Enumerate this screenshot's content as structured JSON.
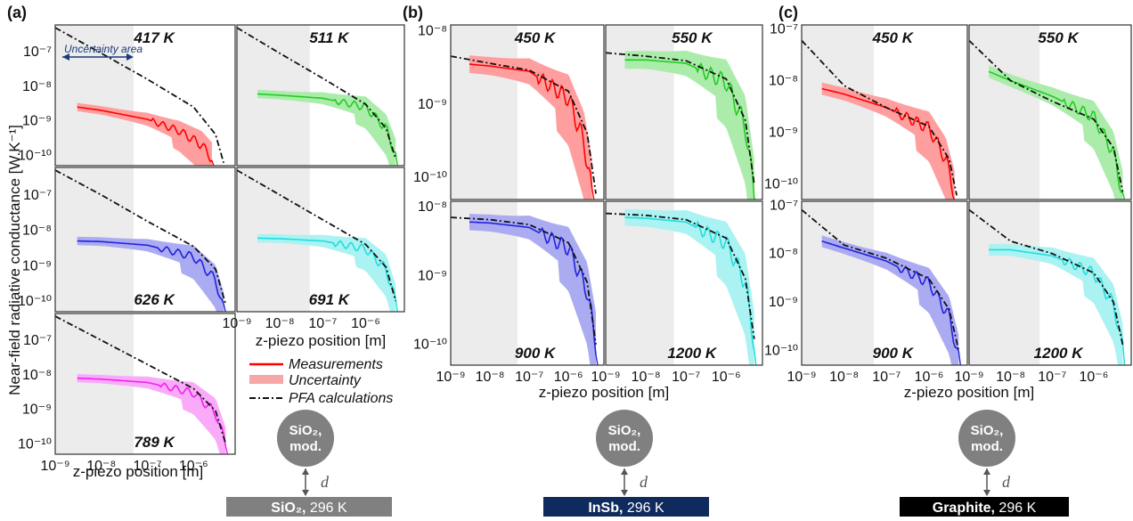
{
  "chart_data": {
    "type": "line",
    "ylabel": "Near-field radiative conductance [W.K⁻¹]",
    "xlabel": "z-piezo position [m]",
    "xscale": "log",
    "yscale": "log",
    "x_tick_labels": [
      "10⁻⁹",
      "10⁻⁸",
      "10⁻⁷",
      "10⁻⁶"
    ],
    "legend": {
      "placement": "between panels (a) and (b)",
      "entries": [
        "Measurements",
        "Uncertainty",
        "PFA calculations"
      ]
    },
    "uncertainty_annotation": "Uncertainty area",
    "groups": [
      {
        "letter": "(a)",
        "substrate": "SiO₂",
        "substrate_label": "SiO₂,",
        "substrate_temp": " 296 K",
        "probe_line1": "SiO₂,",
        "probe_line2": "mod.",
        "gap_label": "d",
        "substrate_color": "#808080",
        "panels": [
          {
            "temperature": "417 K",
            "color": "#ff0000",
            "ylim": [
              5e-11,
              6e-07
            ],
            "yticks": [
              "10⁻⁷",
              "10⁻⁸",
              "10⁻⁹",
              "10⁻¹⁰"
            ],
            "measurement": [
              [
                3e-09,
                2.5e-09
              ],
              [
                1e-08,
                2e-09
              ],
              [
                1e-07,
                1.1e-09
              ],
              [
                5e-07,
                5e-10
              ],
              [
                1.5e-06,
                2e-10
              ],
              [
                2.5e-06,
                8e-11
              ]
            ],
            "pfa": [
              [
                1e-09,
                5e-07
              ],
              [
                1e-08,
                9e-08
              ],
              [
                1e-07,
                1.6e-08
              ],
              [
                1e-06,
                2.5e-09
              ],
              [
                3e-06,
                4e-10
              ],
              [
                4.5e-06,
                6e-11
              ]
            ]
          },
          {
            "temperature": "511 K",
            "color": "#22cc22",
            "ylim": [
              5e-11,
              6e-07
            ],
            "yticks": [],
            "measurement": [
              [
                3e-09,
                6e-09
              ],
              [
                1e-08,
                5.5e-09
              ],
              [
                1e-07,
                4.5e-09
              ],
              [
                1e-06,
                2.5e-09
              ],
              [
                3e-06,
                6e-10
              ],
              [
                5e-06,
                1e-10
              ]
            ],
            "pfa": [
              [
                1e-09,
                5e-07
              ],
              [
                1e-08,
                9e-08
              ],
              [
                1e-07,
                1.7e-08
              ],
              [
                1e-06,
                3e-09
              ],
              [
                3e-06,
                6e-10
              ],
              [
                5e-06,
                8e-11
              ]
            ]
          },
          {
            "temperature": "626 K",
            "color": "#2222dd",
            "ylim": [
              5e-11,
              6e-07
            ],
            "yticks": [
              "10⁻⁷",
              "10⁻⁸",
              "10⁻⁹",
              "10⁻¹⁰"
            ],
            "measurement": [
              [
                3e-09,
                5e-09
              ],
              [
                1e-08,
                4.8e-09
              ],
              [
                1e-07,
                3.8e-09
              ],
              [
                1e-06,
                1.8e-09
              ],
              [
                3e-06,
                4e-10
              ],
              [
                4.5e-06,
                6e-11
              ]
            ],
            "pfa": [
              [
                1e-09,
                5e-07
              ],
              [
                1e-08,
                1e-07
              ],
              [
                1e-07,
                1.8e-08
              ],
              [
                1e-06,
                3.5e-09
              ],
              [
                3e-06,
                8e-10
              ],
              [
                5e-06,
                8e-11
              ]
            ]
          },
          {
            "temperature": "691 K",
            "color": "#22dddd",
            "ylim": [
              5e-11,
              6e-07
            ],
            "yticks": [],
            "measurement": [
              [
                3e-09,
                6e-09
              ],
              [
                1e-08,
                5.8e-09
              ],
              [
                1e-07,
                5e-09
              ],
              [
                1e-06,
                3e-09
              ],
              [
                3e-06,
                8e-10
              ],
              [
                5e-06,
                1e-10
              ]
            ],
            "pfa": [
              [
                1e-09,
                5e-07
              ],
              [
                1e-08,
                1e-07
              ],
              [
                1e-07,
                2e-08
              ],
              [
                1e-06,
                4e-09
              ],
              [
                3e-06,
                9e-10
              ],
              [
                5e-06,
                1e-10
              ]
            ]
          },
          {
            "temperature": "789 K",
            "color": "#ee22ee",
            "ylim": [
              5e-11,
              6e-07
            ],
            "yticks": [
              "10⁻⁷",
              "10⁻⁸",
              "10⁻⁹",
              "10⁻¹⁰"
            ],
            "measurement": [
              [
                3e-09,
                8e-09
              ],
              [
                1e-08,
                7.5e-09
              ],
              [
                1e-07,
                6e-09
              ],
              [
                1e-06,
                3e-09
              ],
              [
                3e-06,
                8e-10
              ],
              [
                5e-06,
                1e-10
              ]
            ],
            "pfa": [
              [
                1e-09,
                5e-07
              ],
              [
                1e-08,
                1e-07
              ],
              [
                1e-07,
                2e-08
              ],
              [
                1e-06,
                4e-09
              ],
              [
                3e-06,
                9e-10
              ],
              [
                5e-06,
                1e-10
              ]
            ]
          }
        ]
      },
      {
        "letter": "(b)",
        "substrate": "InSb",
        "substrate_label": "InSb,",
        "substrate_temp": " 296 K",
        "probe_line1": "SiO₂,",
        "probe_line2": "mod.",
        "gap_label": "d",
        "substrate_color": "#0f2a5c",
        "panels": [
          {
            "temperature": "450 K",
            "color": "#ff0000",
            "ylim": [
              5e-11,
              1.2e-08
            ],
            "yticks": [
              "10⁻⁸",
              "10⁻⁹",
              "10⁻¹⁰"
            ],
            "measurement": [
              [
                3e-09,
                3.5e-09
              ],
              [
                1e-08,
                3.3e-09
              ],
              [
                1e-07,
                2.8e-09
              ],
              [
                1e-06,
                1.2e-09
              ],
              [
                2.5e-06,
                3e-10
              ],
              [
                4e-06,
                6e-11
              ]
            ],
            "pfa": [
              [
                1e-09,
                4.5e-09
              ],
              [
                1e-08,
                3.6e-09
              ],
              [
                1e-07,
                2.9e-09
              ],
              [
                1e-06,
                1.5e-09
              ],
              [
                3e-06,
                4e-10
              ],
              [
                5e-06,
                6e-11
              ]
            ]
          },
          {
            "temperature": "550 K",
            "color": "#22cc22",
            "ylim": [
              5e-11,
              1.2e-08
            ],
            "yticks": [],
            "measurement": [
              [
                3e-09,
                4e-09
              ],
              [
                1e-08,
                4e-09
              ],
              [
                1e-07,
                3.6e-09
              ],
              [
                1e-06,
                2e-09
              ],
              [
                3e-06,
                5e-10
              ],
              [
                5e-06,
                6e-11
              ]
            ],
            "pfa": [
              [
                1e-09,
                5e-09
              ],
              [
                1e-08,
                4.5e-09
              ],
              [
                1e-07,
                3.9e-09
              ],
              [
                1e-06,
                2.2e-09
              ],
              [
                3e-06,
                6e-10
              ],
              [
                5e-06,
                8e-11
              ]
            ]
          },
          {
            "temperature": "900 K",
            "color": "#2222dd",
            "ylim": [
              5e-11,
              1.2e-08
            ],
            "yticks": [
              "10⁻⁸",
              "10⁻⁹",
              "10⁻¹⁰"
            ],
            "measurement": [
              [
                3e-09,
                6e-09
              ],
              [
                1e-08,
                5.8e-09
              ],
              [
                1e-07,
                5e-09
              ],
              [
                1e-06,
                2.5e-09
              ],
              [
                3e-06,
                6e-10
              ],
              [
                5e-06,
                1e-10
              ]
            ],
            "pfa": [
              [
                1e-09,
                7e-09
              ],
              [
                1e-08,
                6.5e-09
              ],
              [
                1e-07,
                5.5e-09
              ],
              [
                1e-06,
                3e-09
              ],
              [
                3e-06,
                8e-10
              ],
              [
                5e-06,
                1e-10
              ]
            ]
          },
          {
            "temperature": "1200 K",
            "color": "#22dddd",
            "ylim": [
              5e-11,
              1.2e-08
            ],
            "yticks": [],
            "measurement": [
              [
                3e-09,
                7e-09
              ],
              [
                1e-08,
                6.8e-09
              ],
              [
                1e-07,
                6e-09
              ],
              [
                1e-06,
                3e-09
              ],
              [
                3e-06,
                8e-10
              ],
              [
                5e-06,
                1e-10
              ]
            ],
            "pfa": [
              [
                1e-09,
                8e-09
              ],
              [
                1e-08,
                7.5e-09
              ],
              [
                1e-07,
                6.5e-09
              ],
              [
                1e-06,
                3.5e-09
              ],
              [
                3e-06,
                9e-10
              ],
              [
                5e-06,
                1.2e-10
              ]
            ]
          }
        ]
      },
      {
        "letter": "(c)",
        "substrate": "Graphite",
        "substrate_label": "Graphite,",
        "substrate_temp": " 296 K",
        "probe_line1": "SiO₂,",
        "probe_line2": "mod.",
        "gap_label": "d",
        "substrate_color": "#000000",
        "panels": [
          {
            "temperature": "450 K",
            "color": "#ff0000",
            "ylim": [
              5e-11,
              1.2e-07
            ],
            "yticks": [
              "10⁻⁷",
              "10⁻⁸",
              "10⁻⁹",
              "10⁻¹⁰"
            ],
            "measurement": [
              [
                3e-09,
                7e-09
              ],
              [
                1e-08,
                5.5e-09
              ],
              [
                1e-07,
                3e-09
              ],
              [
                1e-06,
                1.2e-09
              ],
              [
                2.5e-06,
                3e-10
              ],
              [
                4e-06,
                6e-11
              ]
            ],
            "pfa": [
              [
                1e-09,
                6e-08
              ],
              [
                1e-08,
                8e-09
              ],
              [
                1e-07,
                3e-09
              ],
              [
                1e-06,
                1.3e-09
              ],
              [
                3e-06,
                3e-10
              ],
              [
                4.5e-06,
                6e-11
              ]
            ]
          },
          {
            "temperature": "550 K",
            "color": "#22cc22",
            "ylim": [
              5e-11,
              1.2e-07
            ],
            "yticks": [],
            "measurement": [
              [
                3e-09,
                1.5e-08
              ],
              [
                1e-08,
                1e-08
              ],
              [
                1e-07,
                5e-09
              ],
              [
                1e-06,
                2e-09
              ],
              [
                3e-06,
                4e-10
              ],
              [
                5e-06,
                6e-11
              ]
            ],
            "pfa": [
              [
                1e-09,
                6e-08
              ],
              [
                1e-08,
                1e-08
              ],
              [
                1e-07,
                4e-09
              ],
              [
                1e-06,
                1.8e-09
              ],
              [
                3e-06,
                5e-10
              ],
              [
                5e-06,
                7e-11
              ]
            ]
          },
          {
            "temperature": "900 K",
            "color": "#2222dd",
            "ylim": [
              5e-11,
              1.2e-07
            ],
            "yticks": [
              "10⁻⁷",
              "10⁻⁸",
              "10⁻⁹",
              "10⁻¹⁰"
            ],
            "measurement": [
              [
                3e-09,
                1.8e-08
              ],
              [
                1e-08,
                1.3e-08
              ],
              [
                1e-07,
                7e-09
              ],
              [
                1e-06,
                2.5e-09
              ],
              [
                3e-06,
                5e-10
              ],
              [
                5e-06,
                7e-11
              ]
            ],
            "pfa": [
              [
                1e-09,
                8e-08
              ],
              [
                1e-08,
                1.5e-08
              ],
              [
                1e-07,
                8e-09
              ],
              [
                1e-06,
                3e-09
              ],
              [
                3e-06,
                7e-10
              ],
              [
                5e-06,
                1e-10
              ]
            ]
          },
          {
            "temperature": "1200 K",
            "color": "#22dddd",
            "ylim": [
              5e-11,
              1.2e-07
            ],
            "yticks": [],
            "measurement": [
              [
                3e-09,
                1.2e-08
              ],
              [
                1e-08,
                1.2e-08
              ],
              [
                1e-07,
                9e-09
              ],
              [
                1e-06,
                4e-09
              ],
              [
                3e-06,
                9e-10
              ],
              [
                5e-06,
                1.2e-10
              ]
            ],
            "pfa": [
              [
                1e-09,
                8e-08
              ],
              [
                1e-08,
                1.8e-08
              ],
              [
                1e-07,
                1e-08
              ],
              [
                1e-06,
                4e-09
              ],
              [
                3e-06,
                1e-09
              ],
              [
                5e-06,
                1.3e-10
              ]
            ]
          }
        ]
      }
    ]
  }
}
